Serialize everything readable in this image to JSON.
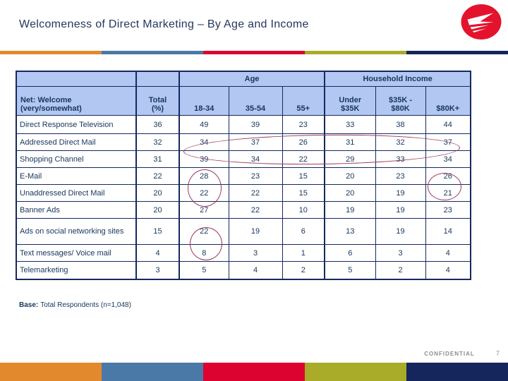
{
  "header": {
    "title": "Welcomeness of Direct Marketing – By Age and Income",
    "logo_icon": "canada-post-logo",
    "logo_color": "#E4132D"
  },
  "accent_bar_colors": [
    "#E2892E",
    "#4A79A8",
    "#DD0330",
    "#A8AC29",
    "#15265C"
  ],
  "table": {
    "group_headers": {
      "age": "Age",
      "income": "Household Income"
    },
    "col_headers": [
      "Net: Welcome\n(very/somewhat)",
      "Total\n(%)",
      "18-34",
      "35-54",
      "55+",
      "Under\n$35K",
      "$35K -\n$80K",
      "$80K+"
    ],
    "rows": [
      {
        "label": "Direct Response Television",
        "values": [
          36,
          49,
          39,
          23,
          33,
          38,
          44
        ]
      },
      {
        "label": "Addressed Direct Mail",
        "values": [
          32,
          34,
          37,
          26,
          31,
          32,
          37
        ]
      },
      {
        "label": "Shopping Channel",
        "values": [
          31,
          39,
          34,
          22,
          29,
          33,
          34
        ]
      },
      {
        "label": "E-Mail",
        "values": [
          22,
          28,
          23,
          15,
          20,
          23,
          26
        ]
      },
      {
        "label": "Unaddressed Direct Mail",
        "values": [
          20,
          22,
          22,
          15,
          20,
          19,
          21
        ]
      },
      {
        "label": "Banner Ads",
        "values": [
          20,
          27,
          22,
          10,
          19,
          19,
          23
        ]
      },
      {
        "label": "Ads on social networking sites",
        "values": [
          15,
          22,
          19,
          6,
          13,
          19,
          14
        ]
      },
      {
        "label": "Text messages/ Voice mail",
        "values": [
          4,
          8,
          3,
          1,
          6,
          3,
          4
        ]
      },
      {
        "label": "Telemarketing",
        "values": [
          3,
          5,
          4,
          2,
          5,
          2,
          4
        ]
      }
    ]
  },
  "annotations": {
    "color": "#9B3A5C",
    "items": [
      "ellipse-shopping-channel-row",
      "circle-unaddressed-direct-mail-18-34",
      "circle-text-messages-telemarketing-18-34",
      "circle-unaddressed-direct-mail-80k-plus"
    ]
  },
  "footer": {
    "base_label": "Base:",
    "base_text": "Total Respondents (n=1,048)",
    "confidential": "CONFIDENTIAL",
    "page_number": "7"
  }
}
